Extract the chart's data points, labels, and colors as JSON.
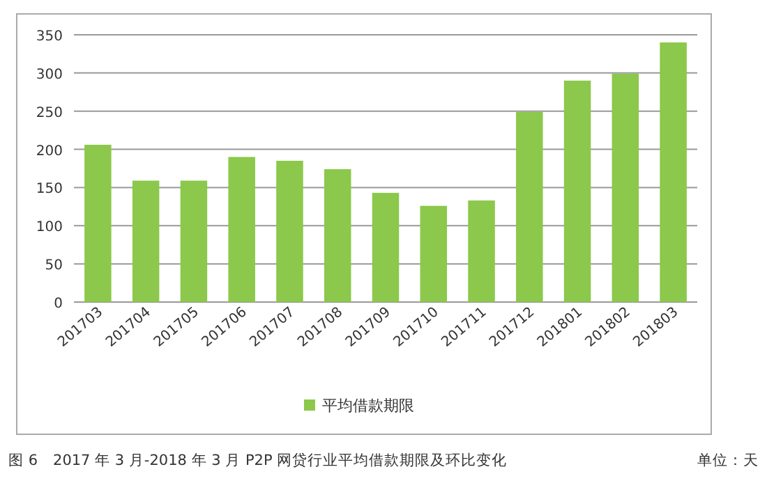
{
  "chart_data": {
    "type": "bar",
    "categories": [
      "201703",
      "201704",
      "201705",
      "201706",
      "201707",
      "201708",
      "201709",
      "201710",
      "201711",
      "201712",
      "201801",
      "201802",
      "201803"
    ],
    "series": [
      {
        "name": "平均借款期限",
        "color": "#8cc84b",
        "values": [
          206,
          159,
          159,
          190,
          185,
          174,
          143,
          126,
          133,
          249,
          290,
          299,
          340
        ]
      }
    ],
    "ylim": [
      0,
      350
    ],
    "yticks": [
      0,
      50,
      100,
      150,
      200,
      250,
      300,
      350
    ],
    "grid": "y",
    "legend": "bottom",
    "annotations": [
      "图 6　2017 年 3 月-2018 年 3 月 P2P 网贷行业平均借款期限及环比变化",
      "单位：天"
    ]
  }
}
